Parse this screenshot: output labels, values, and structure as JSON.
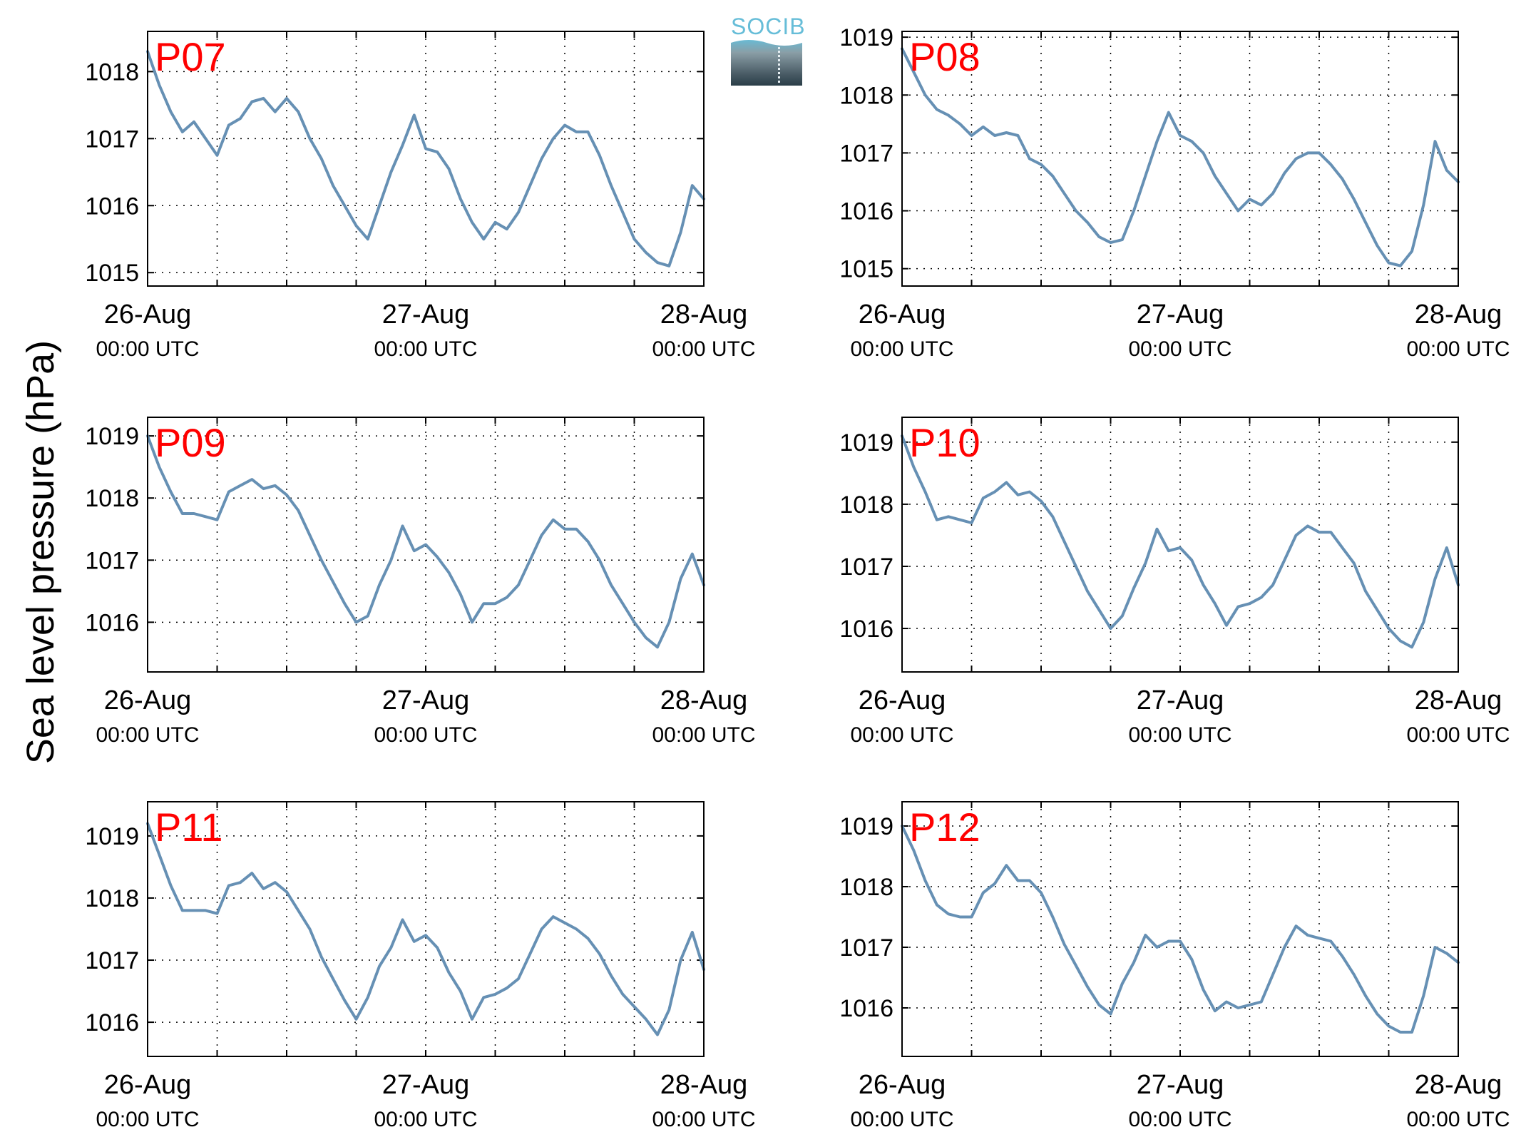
{
  "figure": {
    "ylabel": "Sea level pressure (hPa)",
    "logo_text": "SOCIB",
    "line_color": "#6690b4",
    "label_color": "#ff0000"
  },
  "chart_data": [
    {
      "type": "line",
      "label": "P07",
      "xlabel": "",
      "ylabel": "",
      "x_range": [
        "26-Aug 00:00 UTC",
        "28-Aug 00:00 UTC"
      ],
      "xtick_labels": [
        [
          "26-Aug",
          "00:00 UTC"
        ],
        [
          "27-Aug",
          "00:00 UTC"
        ],
        [
          "28-Aug",
          "00:00 UTC"
        ]
      ],
      "ylim": [
        1014.8,
        1018.6
      ],
      "yticks": [
        1015,
        1016,
        1017,
        1018
      ],
      "grid": true,
      "series": [
        {
          "x_hours": [
            0,
            1,
            2,
            3,
            4,
            5,
            6,
            7,
            8,
            9,
            10,
            11,
            12,
            13,
            14,
            15,
            16,
            17,
            18,
            19,
            20,
            21,
            22,
            23,
            24,
            25,
            26,
            27,
            28,
            29,
            30,
            31,
            32,
            33,
            34,
            35,
            36,
            37,
            38,
            39,
            40,
            41,
            42,
            43,
            44,
            45,
            46,
            47,
            48
          ],
          "values": [
            1018.3,
            1017.8,
            1017.4,
            1017.1,
            1017.25,
            1017.0,
            1016.75,
            1017.2,
            1017.3,
            1017.55,
            1017.6,
            1017.4,
            1017.6,
            1017.4,
            1017.0,
            1016.7,
            1016.3,
            1016.0,
            1015.7,
            1015.5,
            1016.0,
            1016.5,
            1016.9,
            1017.35,
            1016.85,
            1016.8,
            1016.55,
            1016.1,
            1015.75,
            1015.5,
            1015.75,
            1015.65,
            1015.9,
            1016.3,
            1016.7,
            1017.0,
            1017.2,
            1017.1,
            1017.1,
            1016.75,
            1016.3,
            1015.9,
            1015.5,
            1015.3,
            1015.15,
            1015.1,
            1015.6,
            1016.3,
            1016.1
          ]
        }
      ]
    },
    {
      "type": "line",
      "label": "P08",
      "xlabel": "",
      "ylabel": "",
      "x_range": [
        "26-Aug 00:00 UTC",
        "28-Aug 00:00 UTC"
      ],
      "xtick_labels": [
        [
          "26-Aug",
          "00:00 UTC"
        ],
        [
          "27-Aug",
          "00:00 UTC"
        ],
        [
          "28-Aug",
          "00:00 UTC"
        ]
      ],
      "ylim": [
        1014.7,
        1019.1
      ],
      "yticks": [
        1015,
        1016,
        1017,
        1018,
        1019
      ],
      "grid": true,
      "series": [
        {
          "x_hours": [
            0,
            1,
            2,
            3,
            4,
            5,
            6,
            7,
            8,
            9,
            10,
            11,
            12,
            13,
            14,
            15,
            16,
            17,
            18,
            19,
            20,
            21,
            22,
            23,
            24,
            25,
            26,
            27,
            28,
            29,
            30,
            31,
            32,
            33,
            34,
            35,
            36,
            37,
            38,
            39,
            40,
            41,
            42,
            43,
            44,
            45,
            46,
            47,
            48
          ],
          "values": [
            1018.8,
            1018.4,
            1018.0,
            1017.75,
            1017.65,
            1017.5,
            1017.3,
            1017.45,
            1017.3,
            1017.35,
            1017.3,
            1016.9,
            1016.8,
            1016.6,
            1016.3,
            1016.0,
            1015.8,
            1015.55,
            1015.45,
            1015.5,
            1016.0,
            1016.6,
            1017.2,
            1017.7,
            1017.3,
            1017.2,
            1017.0,
            1016.6,
            1016.3,
            1016.0,
            1016.2,
            1016.1,
            1016.3,
            1016.65,
            1016.9,
            1017.0,
            1017.0,
            1016.8,
            1016.55,
            1016.2,
            1015.8,
            1015.4,
            1015.1,
            1015.05,
            1015.3,
            1016.1,
            1017.2,
            1016.7,
            1016.5
          ]
        }
      ]
    },
    {
      "type": "line",
      "label": "P09",
      "xlabel": "",
      "ylabel": "",
      "x_range": [
        "26-Aug 00:00 UTC",
        "28-Aug 00:00 UTC"
      ],
      "xtick_labels": [
        [
          "26-Aug",
          "00:00 UTC"
        ],
        [
          "27-Aug",
          "00:00 UTC"
        ],
        [
          "28-Aug",
          "00:00 UTC"
        ]
      ],
      "ylim": [
        1015.2,
        1019.3
      ],
      "yticks": [
        1016,
        1017,
        1018,
        1019
      ],
      "grid": true,
      "series": [
        {
          "x_hours": [
            0,
            1,
            2,
            3,
            4,
            5,
            6,
            7,
            8,
            9,
            10,
            11,
            12,
            13,
            14,
            15,
            16,
            17,
            18,
            19,
            20,
            21,
            22,
            23,
            24,
            25,
            26,
            27,
            28,
            29,
            30,
            31,
            32,
            33,
            34,
            35,
            36,
            37,
            38,
            39,
            40,
            41,
            42,
            43,
            44,
            45,
            46,
            47,
            48
          ],
          "values": [
            1019.0,
            1018.5,
            1018.1,
            1017.75,
            1017.75,
            1017.7,
            1017.65,
            1018.1,
            1018.2,
            1018.3,
            1018.15,
            1018.2,
            1018.05,
            1017.8,
            1017.4,
            1017.0,
            1016.65,
            1016.3,
            1016.0,
            1016.1,
            1016.6,
            1017.0,
            1017.55,
            1017.15,
            1017.25,
            1017.05,
            1016.8,
            1016.45,
            1016.0,
            1016.3,
            1016.3,
            1016.4,
            1016.6,
            1017.0,
            1017.4,
            1017.65,
            1017.5,
            1017.5,
            1017.3,
            1017.0,
            1016.6,
            1016.3,
            1016.0,
            1015.75,
            1015.6,
            1016.0,
            1016.7,
            1017.1,
            1016.6
          ]
        }
      ]
    },
    {
      "type": "line",
      "label": "P10",
      "xlabel": "",
      "ylabel": "",
      "x_range": [
        "26-Aug 00:00 UTC",
        "28-Aug 00:00 UTC"
      ],
      "xtick_labels": [
        [
          "26-Aug",
          "00:00 UTC"
        ],
        [
          "27-Aug",
          "00:00 UTC"
        ],
        [
          "28-Aug",
          "00:00 UTC"
        ]
      ],
      "ylim": [
        1015.3,
        1019.4
      ],
      "yticks": [
        1016,
        1017,
        1018,
        1019
      ],
      "grid": true,
      "series": [
        {
          "x_hours": [
            0,
            1,
            2,
            3,
            4,
            5,
            6,
            7,
            8,
            9,
            10,
            11,
            12,
            13,
            14,
            15,
            16,
            17,
            18,
            19,
            20,
            21,
            22,
            23,
            24,
            25,
            26,
            27,
            28,
            29,
            30,
            31,
            32,
            33,
            34,
            35,
            36,
            37,
            38,
            39,
            40,
            41,
            42,
            43,
            44,
            45,
            46,
            47,
            48
          ],
          "values": [
            1019.1,
            1018.6,
            1018.2,
            1017.75,
            1017.8,
            1017.75,
            1017.7,
            1018.1,
            1018.2,
            1018.35,
            1018.15,
            1018.2,
            1018.05,
            1017.8,
            1017.4,
            1017.0,
            1016.6,
            1016.3,
            1016.0,
            1016.2,
            1016.65,
            1017.05,
            1017.6,
            1017.25,
            1017.3,
            1017.1,
            1016.7,
            1016.4,
            1016.05,
            1016.35,
            1016.4,
            1016.5,
            1016.7,
            1017.1,
            1017.5,
            1017.65,
            1017.55,
            1017.55,
            1017.3,
            1017.05,
            1016.6,
            1016.3,
            1016.0,
            1015.8,
            1015.7,
            1016.1,
            1016.8,
            1017.3,
            1016.7
          ]
        }
      ]
    },
    {
      "type": "line",
      "label": "P11",
      "xlabel": "",
      "ylabel": "",
      "x_range": [
        "26-Aug 00:00 UTC",
        "28-Aug 00:00 UTC"
      ],
      "xtick_labels": [
        [
          "26-Aug",
          "00:00 UTC"
        ],
        [
          "27-Aug",
          "00:00 UTC"
        ],
        [
          "28-Aug",
          "00:00 UTC"
        ]
      ],
      "ylim": [
        1015.45,
        1019.55
      ],
      "yticks": [
        1016,
        1017,
        1018,
        1019
      ],
      "grid": true,
      "series": [
        {
          "x_hours": [
            0,
            1,
            2,
            3,
            4,
            5,
            6,
            7,
            8,
            9,
            10,
            11,
            12,
            13,
            14,
            15,
            16,
            17,
            18,
            19,
            20,
            21,
            22,
            23,
            24,
            25,
            26,
            27,
            28,
            29,
            30,
            31,
            32,
            33,
            34,
            35,
            36,
            37,
            38,
            39,
            40,
            41,
            42,
            43,
            44,
            45,
            46,
            47,
            48
          ],
          "values": [
            1019.2,
            1018.7,
            1018.2,
            1017.8,
            1017.8,
            1017.8,
            1017.75,
            1018.2,
            1018.25,
            1018.4,
            1018.15,
            1018.25,
            1018.1,
            1017.8,
            1017.5,
            1017.05,
            1016.7,
            1016.35,
            1016.05,
            1016.4,
            1016.9,
            1017.2,
            1017.65,
            1017.3,
            1017.4,
            1017.2,
            1016.8,
            1016.5,
            1016.05,
            1016.4,
            1016.45,
            1016.55,
            1016.7,
            1017.1,
            1017.5,
            1017.7,
            1017.6,
            1017.5,
            1017.35,
            1017.1,
            1016.75,
            1016.45,
            1016.25,
            1016.05,
            1015.8,
            1016.2,
            1017.0,
            1017.45,
            1016.85
          ]
        }
      ]
    },
    {
      "type": "line",
      "label": "P12",
      "xlabel": "",
      "ylabel": "",
      "x_range": [
        "26-Aug 00:00 UTC",
        "28-Aug 00:00 UTC"
      ],
      "xtick_labels": [
        [
          "26-Aug",
          "00:00 UTC"
        ],
        [
          "27-Aug",
          "00:00 UTC"
        ],
        [
          "28-Aug",
          "00:00 UTC"
        ]
      ],
      "ylim": [
        1015.2,
        1019.4
      ],
      "yticks": [
        1016,
        1017,
        1018,
        1019
      ],
      "grid": true,
      "series": [
        {
          "x_hours": [
            0,
            1,
            2,
            3,
            4,
            5,
            6,
            7,
            8,
            9,
            10,
            11,
            12,
            13,
            14,
            15,
            16,
            17,
            18,
            19,
            20,
            21,
            22,
            23,
            24,
            25,
            26,
            27,
            28,
            29,
            30,
            31,
            32,
            33,
            34,
            35,
            36,
            37,
            38,
            39,
            40,
            41,
            42,
            43,
            44,
            45,
            46,
            47,
            48
          ],
          "values": [
            1019.0,
            1018.6,
            1018.1,
            1017.7,
            1017.55,
            1017.5,
            1017.5,
            1017.9,
            1018.05,
            1018.35,
            1018.1,
            1018.1,
            1017.9,
            1017.5,
            1017.05,
            1016.7,
            1016.35,
            1016.05,
            1015.9,
            1016.4,
            1016.75,
            1017.2,
            1017.0,
            1017.1,
            1017.1,
            1016.8,
            1016.3,
            1015.95,
            1016.1,
            1016.0,
            1016.05,
            1016.1,
            1016.55,
            1017.0,
            1017.35,
            1017.2,
            1017.15,
            1017.1,
            1016.85,
            1016.55,
            1016.2,
            1015.9,
            1015.7,
            1015.6,
            1015.6,
            1016.2,
            1017.0,
            1016.9,
            1016.75
          ]
        }
      ]
    }
  ]
}
